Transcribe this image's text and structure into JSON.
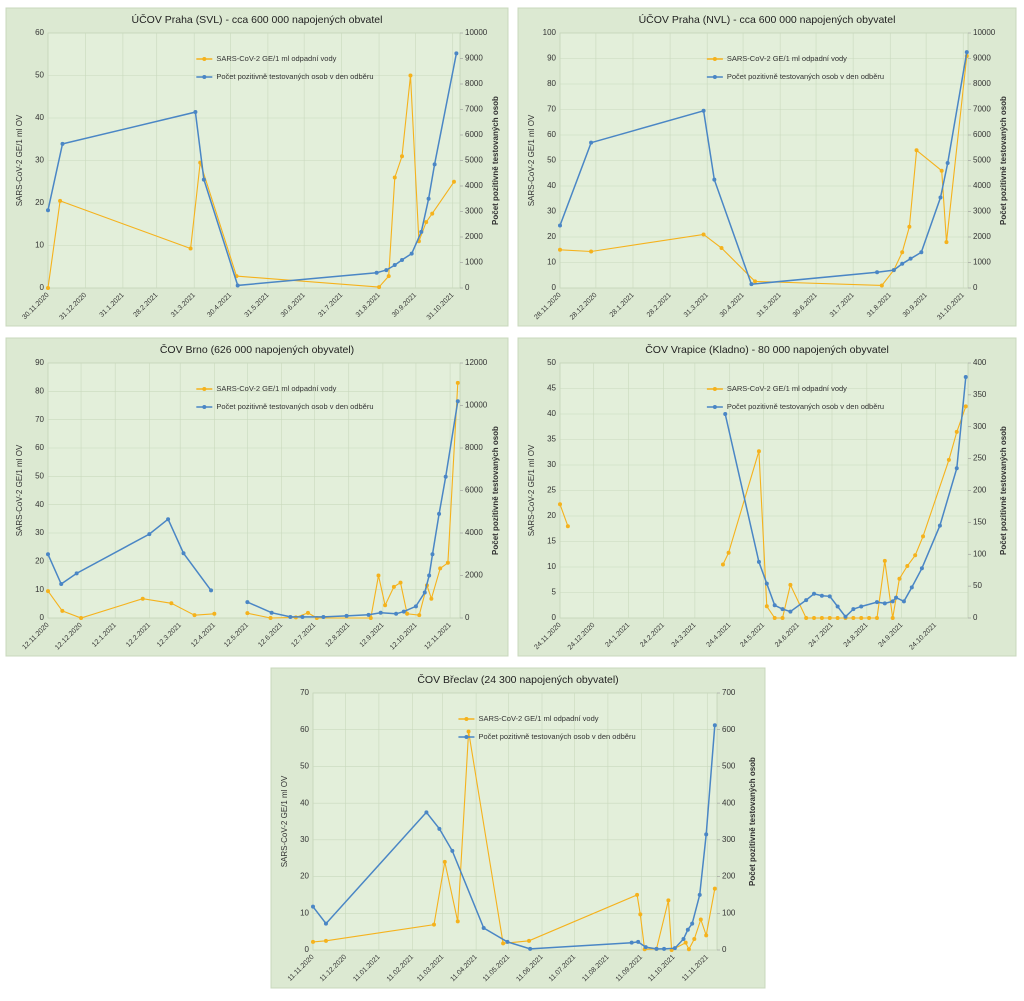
{
  "chart_data": [
    {
      "type": "line",
      "title": "ÚČOV Praha (SVL) - cca 600 000 napojených obvatel",
      "ylabel": "SARS-CoV-2 GE/1 ml OV",
      "y2label": "Počet pozitivně testovaných osob",
      "xlim": [
        "30.11.2020",
        "06.11.2021"
      ],
      "xticks": [
        "30.11.2020",
        "31.12.2020",
        "31.1.2021",
        "28.2.2021",
        "31.3.2021",
        "30.4.2021",
        "31.5.2021",
        "30.6.2021",
        "31.7.2021",
        "31.8.2021",
        "30.9.2021",
        "31.10.2021"
      ],
      "ylim": [
        0,
        60
      ],
      "yticks": [
        0,
        10,
        20,
        30,
        40,
        50,
        60
      ],
      "y2lim": [
        0,
        10000
      ],
      "y2ticks": [
        0,
        1000,
        2000,
        3000,
        4000,
        5000,
        6000,
        7000,
        8000,
        9000,
        10000
      ],
      "series": [
        {
          "name": "SARS-CoV-2 GE/1 ml odpadní vody",
          "color": "#f5b21c",
          "x": [
            "30.11.2020",
            "10.12.2020",
            "28.3.2021",
            "5.4.2021",
            "5.5.2021",
            "31.8.2021",
            "8.9.2021",
            "13.9.2021",
            "19.9.2021",
            "26.9.2021",
            "3.10.2021",
            "9.10.2021",
            "14.10.2021",
            "1.11.2021"
          ],
          "values": [
            0,
            20.5,
            9.3,
            29.5,
            2.8,
            0.2,
            2.8,
            26,
            31,
            50,
            11,
            15.5,
            17.5,
            25
          ]
        },
        {
          "name": "Počet pozitivně testovaných osob v den odběru",
          "color": "#4a86c5",
          "axis": "y2",
          "x": [
            "30.11.2020",
            "12.12.2020",
            "1.4.2021",
            "8.4.2021",
            "6.5.2021",
            "29.8.2021",
            "6.9.2021",
            "13.9.2021",
            "19.9.2021",
            "27.9.2021",
            "5.10.2021",
            "11.10.2021",
            "16.10.2021",
            "3.11.2021"
          ],
          "values": [
            3050,
            5650,
            6900,
            4250,
            100,
            600,
            700,
            900,
            1100,
            1350,
            2200,
            3500,
            4850,
            9200
          ]
        }
      ]
    },
    {
      "type": "line",
      "title": "ÚČOV Praha (NVL) - cca 600 000 napojených obyvatel",
      "ylabel": "SARS-CoV-2 GE/1 ml OV",
      "y2label": "Počet pozitivně testovaných osob",
      "xlim": [
        "28.11.2020",
        "04.11.2021"
      ],
      "xticks": [
        "28.11.2020",
        "28.12.2020",
        "28.1.2021",
        "28.2.2021",
        "31.3.2021",
        "30.4.2021",
        "31.5.2021",
        "30.6.2021",
        "31.7.2021",
        "31.8.2021",
        "30.9.2021",
        "31.10.2021"
      ],
      "ylim": [
        0,
        100
      ],
      "yticks": [
        0,
        10,
        20,
        30,
        40,
        50,
        60,
        70,
        80,
        90,
        100
      ],
      "y2lim": [
        0,
        10000
      ],
      "y2ticks": [
        0,
        1000,
        2000,
        3000,
        4000,
        5000,
        6000,
        7000,
        8000,
        9000,
        10000
      ],
      "series": [
        {
          "name": "SARS-CoV-2 GE/1 ml odpadní vody",
          "color": "#f5b21c",
          "x": [
            "28.11.2020",
            "24.12.2020",
            "28.3.2021",
            "12.4.2021",
            "10.5.2021",
            "24.8.2021",
            "3.9.2021",
            "10.9.2021",
            "16.9.2021",
            "22.9.2021",
            "13.10.2021",
            "17.10.2021",
            "3.11.2021"
          ],
          "values": [
            15,
            14.3,
            21,
            15.7,
            2.6,
            1,
            7,
            14,
            24,
            54,
            46,
            18,
            91
          ]
        },
        {
          "name": "Počet pozitivně testovaných osob v den odběru",
          "color": "#4a86c5",
          "axis": "y2",
          "x": [
            "28.11.2020",
            "24.12.2020",
            "28.3.2021",
            "6.4.2021",
            "7.5.2021",
            "20.8.2021",
            "3.9.2021",
            "10.9.2021",
            "17.9.2021",
            "26.9.2021",
            "12.10.2021",
            "18.10.2021",
            "3.11.2021"
          ],
          "values": [
            2450,
            5700,
            6950,
            4250,
            150,
            620,
            700,
            950,
            1150,
            1400,
            3550,
            4900,
            9250
          ]
        }
      ]
    },
    {
      "type": "line",
      "title": "ČOV Brno (626 000 napojených obyvatel)",
      "ylabel": "SARS-CoV-2 GE/1 ml OV",
      "y2label": "Počet pozitivně testovaných osob",
      "xlim": [
        "12.11.2020",
        "21.11.2021"
      ],
      "xticks": [
        "12.11.2020",
        "12.12.2020",
        "12.1.2021",
        "12.2.2021",
        "12.3.2021",
        "12.4.2021",
        "12.5.2021",
        "12.6.2021",
        "12.7.2021",
        "12.8.2021",
        "12.9.2021",
        "12.10.2021",
        "12.11.2021"
      ],
      "ylim": [
        0,
        90
      ],
      "yticks": [
        0,
        10,
        20,
        30,
        40,
        50,
        60,
        70,
        80,
        90
      ],
      "y2lim": [
        0,
        12000
      ],
      "y2ticks": [
        0,
        2000,
        4000,
        6000,
        8000,
        10000,
        12000
      ],
      "series": [
        {
          "name": "SARS-CoV-2 GE/1 ml odpadní vody",
          "color": "#f5b21c",
          "x": [
            "12.11.2020",
            "25.11.2020",
            "12.12.2020",
            "6.2.2021",
            "4.3.2021",
            "25.3.2021",
            "12.4.2021",
            null,
            "12.5.2021",
            "2.6.2021",
            "25.6.2021",
            "6.7.2021",
            "14.7.2021",
            "1.9.2021",
            "8.9.2021",
            "14.9.2021",
            "22.9.2021",
            "28.9.2021",
            "4.10.2021",
            "15.10.2021",
            "22.10.2021",
            "26.10.2021",
            "3.11.2021",
            "10.11.2021",
            "19.11.2021"
          ],
          "values": [
            9.5,
            2.5,
            0,
            6.8,
            5.2,
            1,
            1.5,
            null,
            1.7,
            0,
            0.2,
            1.8,
            0,
            0,
            15,
            4.5,
            11,
            12.5,
            1.5,
            1,
            11.5,
            6.8,
            17.5,
            19.5,
            83
          ]
        },
        {
          "name": "Počet pozitivně testovaných osob v den odběru",
          "color": "#4a86c5",
          "axis": "y2",
          "x": [
            "12.11.2020",
            "24.11.2020",
            "8.12.2020",
            "12.2.2021",
            "1.3.2021",
            "15.3.2021",
            "9.4.2021",
            null,
            "12.5.2021",
            "3.6.2021",
            "20.6.2021",
            "1.7.2021",
            "20.7.2021",
            "10.8.2021",
            "30.8.2021",
            "10.9.2021",
            "24.9.2021",
            "1.10.2021",
            "12.10.2021",
            "20.10.2021",
            "24.10.2021",
            "27.10.2021",
            "2.11.2021",
            "8.11.2021",
            "19.11.2021"
          ],
          "values": [
            3000,
            1600,
            2100,
            3950,
            4650,
            3050,
            1300,
            null,
            750,
            250,
            50,
            50,
            50,
            100,
            150,
            250,
            200,
            300,
            550,
            1200,
            2000,
            3000,
            4900,
            6650,
            10200
          ]
        }
      ]
    },
    {
      "type": "line",
      "title": "ČOV Vrapice (Kladno) - 80 000 napojených obyvatel",
      "ylabel": "SARS-CoV-2 GE/1 ml OV",
      "y2label": "Počet pozitivně testovaných osob",
      "xlim": [
        "24.11.2020",
        "22.11.2021"
      ],
      "xticks": [
        "24.11.2020",
        "24.12.2020",
        "24.1.2021",
        "24.2.2021",
        "24.3.2021",
        "24.4.2021",
        "24.5.2021",
        "24.6.2021",
        "24.7.2021",
        "24.8.2021",
        "24.9.2021",
        "24.10.2021"
      ],
      "ylim": [
        0,
        50
      ],
      "yticks": [
        0,
        5,
        10,
        15,
        20,
        25,
        30,
        35,
        40,
        45,
        50
      ],
      "y2lim": [
        0,
        400
      ],
      "y2ticks": [
        0,
        50,
        100,
        150,
        200,
        250,
        300,
        350,
        400
      ],
      "series": [
        {
          "name": "SARS-CoV-2 GE/1 ml odpadní vody",
          "color": "#f5b21c",
          "x": [
            "24.11.2020",
            "1.12.2020",
            null,
            "18.4.2021",
            "23.4.2021",
            "20.5.2021",
            "27.5.2021",
            "3.6.2021",
            "10.6.2021",
            "17.6.2021",
            "1.7.2021",
            "8.7.2021",
            "15.7.2021",
            "22.7.2021",
            "29.7.2021",
            "5.8.2021",
            "12.8.2021",
            "19.8.2021",
            "26.8.2021",
            "2.9.2021",
            "9.9.2021",
            "16.9.2021",
            "22.9.2021",
            "29.9.2021",
            "6.10.2021",
            "13.10.2021",
            "5.11.2021",
            "12.11.2021",
            "20.11.2021"
          ],
          "values": [
            22.3,
            18,
            null,
            10.5,
            12.8,
            32.7,
            2.3,
            0,
            0,
            6.5,
            0,
            0,
            0,
            0,
            0,
            0,
            0,
            0,
            0,
            0,
            11.2,
            0,
            7.7,
            10.2,
            12.3,
            16,
            31,
            36.5,
            41.5
          ]
        },
        {
          "name": "Počet pozitivně testovaných osob v den odběru",
          "color": "#4a86c5",
          "axis": "y2",
          "x": [
            "20.4.2021",
            "20.5.2021",
            "27.5.2021",
            "3.6.2021",
            "10.6.2021",
            "17.6.2021",
            "1.7.2021",
            "8.7.2021",
            "15.7.2021",
            "22.7.2021",
            "29.7.2021",
            "5.8.2021",
            "12.8.2021",
            "19.8.2021",
            "2.9.2021",
            "9.9.2021",
            "16.9.2021",
            "19.9.2021",
            "26.9.2021",
            "3.10.2021",
            "12.10.2021",
            "28.10.2021",
            "12.11.2021",
            "20.11.2021"
          ],
          "values": [
            320,
            88,
            54,
            20,
            14,
            10,
            28,
            38,
            35,
            34,
            18,
            2,
            14,
            18,
            25,
            23,
            26,
            32,
            26,
            48,
            78,
            145,
            235,
            378
          ]
        }
      ]
    },
    {
      "type": "line",
      "title": "ČOV Břeclav (24 300 napojených obyvatel)",
      "ylabel": "SARS-CoV-2 GE/1 ml OV",
      "y2label": "Počet pozitivně testovaných osob",
      "xlim": [
        "11.11.2020",
        "20.11.2021"
      ],
      "xticks": [
        "11.11.2020",
        "11.12.2020",
        "11.01.2021",
        "11.02.2021",
        "11.03.2021",
        "11.04.2021",
        "11.05.2021",
        "11.06.2021",
        "11.07.2021",
        "11.08.2021",
        "11.09.2021",
        "11.10.2021",
        "11.11.2021"
      ],
      "ylim": [
        0,
        70
      ],
      "yticks": [
        0,
        10,
        20,
        30,
        40,
        50,
        60,
        70
      ],
      "y2lim": [
        0,
        700
      ],
      "y2ticks": [
        0,
        100,
        200,
        300,
        400,
        500,
        600,
        700
      ],
      "series": [
        {
          "name": "SARS-CoV-2 GE/1 ml odpadní vody",
          "color": "#f5b21c",
          "x": [
            "11.11.2020",
            "23.11.2020",
            "3.3.2021",
            "13.3.2021",
            "25.3.2021",
            "4.4.2021",
            "6.5.2021",
            "30.5.2021",
            "7.9.2021",
            "10.9.2021",
            "14.9.2021",
            "25.9.2021",
            "6.10.2021",
            "9.10.2021",
            "22.10.2021",
            "25.10.2021",
            "30.10.2021",
            "5.11.2021",
            "10.11.2021",
            "18.11.2021"
          ],
          "values": [
            2.2,
            2.5,
            6.9,
            24,
            7.8,
            59.5,
            1.8,
            2.5,
            15,
            9.7,
            0.2,
            0.3,
            13.5,
            0,
            2,
            0.2,
            3,
            8.3,
            4,
            16.7
          ]
        },
        {
          "name": "Počet pozitivně testovaných osob v den odběru",
          "color": "#4a86c5",
          "axis": "y2",
          "x": [
            "11.11.2020",
            "23.11.2020",
            "24.2.2021",
            "8.3.2021",
            "20.3.2021",
            "18.4.2021",
            "10.5.2021",
            "31.5.2021",
            "2.9.2021",
            "8.9.2021",
            "15.9.2021",
            "25.9.2021",
            "2.10.2021",
            "12.10.2021",
            "20.10.2021",
            "24.10.2021",
            "28.10.2021",
            "4.11.2021",
            "10.11.2021",
            "18.11.2021"
          ],
          "values": [
            118,
            72,
            375,
            330,
            270,
            60,
            22,
            3,
            20,
            22,
            8,
            3,
            3,
            5,
            30,
            55,
            72,
            150,
            315,
            612
          ]
        }
      ]
    }
  ]
}
